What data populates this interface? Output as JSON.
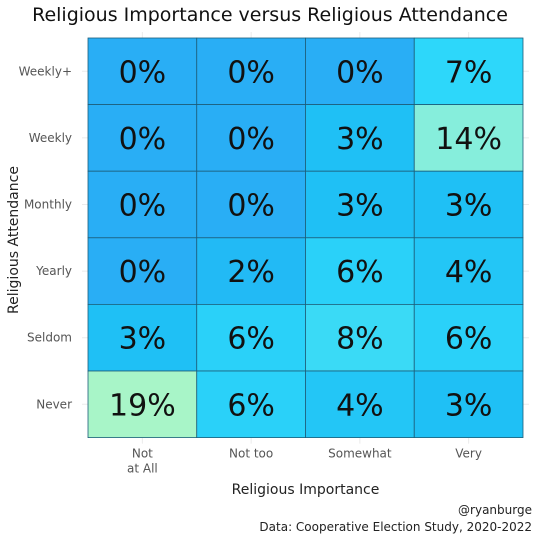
{
  "chart_data": {
    "type": "heatmap",
    "title": "Religious Importance versus Religious Attendance",
    "xlabel": "Religious Importance",
    "ylabel": "Religious Attendance",
    "x_categories": [
      "Not\nat All",
      "Not too",
      "Somewhat",
      "Very"
    ],
    "y_categories": [
      "Weekly+",
      "Weekly",
      "Monthly",
      "Yearly",
      "Seldom",
      "Never"
    ],
    "values": [
      [
        0,
        0,
        0,
        7
      ],
      [
        0,
        0,
        3,
        14
      ],
      [
        0,
        0,
        3,
        3
      ],
      [
        0,
        2,
        6,
        4
      ],
      [
        3,
        6,
        8,
        6
      ],
      [
        19,
        6,
        4,
        3
      ]
    ],
    "labels": [
      [
        "0%",
        "0%",
        "0%",
        "7%"
      ],
      [
        "0%",
        "0%",
        "3%",
        "14%"
      ],
      [
        "0%",
        "0%",
        "3%",
        "3%"
      ],
      [
        "0%",
        "2%",
        "6%",
        "4%"
      ],
      [
        "3%",
        "6%",
        "8%",
        "6%"
      ],
      [
        "19%",
        "6%",
        "4%",
        "3%"
      ]
    ],
    "color_scale": [
      "#29aef5",
      "#1fc8f0",
      "#3fd8f8",
      "#86eedc",
      "#a8f5c8"
    ]
  },
  "credit": {
    "handle": "@ryanburge",
    "source": "Data: Cooperative Election Study, 2020-2022"
  }
}
